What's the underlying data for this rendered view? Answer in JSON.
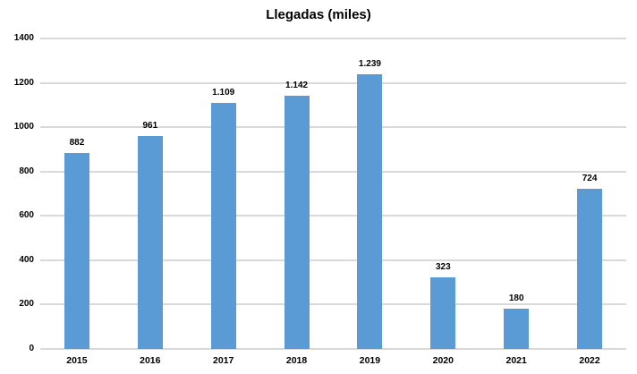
{
  "chart_data": {
    "type": "bar",
    "title": "Llegadas (miles)",
    "categories": [
      "2015",
      "2016",
      "2017",
      "2018",
      "2019",
      "2020",
      "2021",
      "2022"
    ],
    "values": [
      882,
      961,
      1109,
      1142,
      1239,
      323,
      180,
      724
    ],
    "value_labels": [
      "882",
      "961",
      "1.109",
      "1.142",
      "1.239",
      "323",
      "180",
      "724"
    ],
    "xlabel": "",
    "ylabel": "",
    "ylim": [
      0,
      1400
    ],
    "yticks": [
      0,
      200,
      400,
      600,
      800,
      1000,
      1200,
      1400
    ],
    "ytick_labels": [
      "0",
      "200",
      "400",
      "600",
      "800",
      "1000",
      "1200",
      "1400"
    ],
    "grid": "horizontal",
    "legend": "none",
    "bar_color": "#5B9BD5",
    "gridline_color": "#D9D9D9",
    "text_color": "#000000",
    "background": "#FFFFFF"
  }
}
